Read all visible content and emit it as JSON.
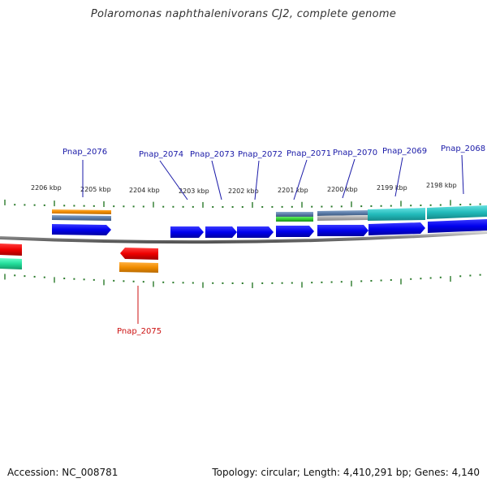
{
  "title": "Polaromonas naphthalenivorans CJ2, complete genome",
  "footer": {
    "accession": "Accession: NC_008781",
    "topology": "Topology: circular; Length: 4,410,291 bp; Genes: 4,140"
  },
  "colors": {
    "forward_gene": "#0000ee",
    "reverse_gene": "#ee0000",
    "label_forward": "#1a1aa8",
    "label_reverse": "#cc1111",
    "tick": "#2a7a2a",
    "backbone": "#888888",
    "cog_orange": "#f08c00",
    "cog_steel": "#5a7ca8",
    "cog_green": "#33cc33",
    "cog_silver": "#aaaaaa",
    "cog_teal": "#22bbbb",
    "cog_spring": "#22dd99"
  },
  "scale_labels": [
    "2206 kbp",
    "2205 kbp",
    "2204 kbp",
    "2203 kbp",
    "2202 kbp",
    "2201 kbp",
    "2200 kbp",
    "2199 kbp",
    "2198 kbp"
  ],
  "gene_labels": [
    {
      "text": "Pnap_2076",
      "strand": "forward"
    },
    {
      "text": "Pnap_2074",
      "strand": "forward"
    },
    {
      "text": "Pnap_2073",
      "strand": "forward"
    },
    {
      "text": "Pnap_2072",
      "strand": "forward"
    },
    {
      "text": "Pnap_2071",
      "strand": "forward"
    },
    {
      "text": "Pnap_2070",
      "strand": "forward"
    },
    {
      "text": "Pnap_2069",
      "strand": "forward"
    },
    {
      "text": "Pnap_2068",
      "strand": "forward"
    },
    {
      "text": "Pnap_2075",
      "strand": "reverse"
    }
  ]
}
